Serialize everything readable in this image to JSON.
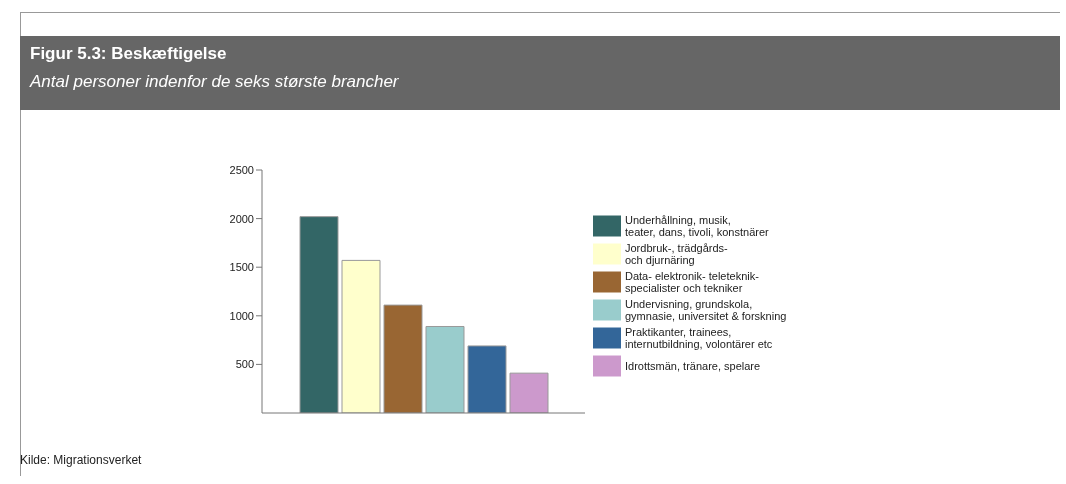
{
  "chart_data": {
    "type": "bar",
    "title": "Figur 5.3: Beskæftigelse",
    "subtitle": "Antal personer indenfor de seks største brancher",
    "categories": [
      null
    ],
    "series": [
      {
        "name": "Underhållning, musik,\nteater, dans, tivoli, konstnärer",
        "color": "#336666",
        "values": [
          2020
        ]
      },
      {
        "name": "Jordbruk-, trädgårds-\noch djurnäring",
        "color": "#ffffcc",
        "values": [
          1570
        ]
      },
      {
        "name": "Data- elektronik- teleteknik-\nspecialister och tekniker",
        "color": "#996633",
        "values": [
          1110
        ]
      },
      {
        "name": "Undervisning, grundskola,\ngymnasie, universitet & forskning",
        "color": "#99cccc",
        "values": [
          890
        ]
      },
      {
        "name": "Praktikanter, trainees,\ninternutbildning, volontärer etc",
        "color": "#336699",
        "values": [
          690
        ]
      },
      {
        "name": "Idrottsmän, tränare, spelare",
        "color": "#cc99cc",
        "values": [
          410
        ]
      }
    ],
    "ylim": [
      0,
      2500
    ],
    "yticks": [
      500,
      1000,
      1500,
      2000,
      2500
    ],
    "legend": "right",
    "tick_labels": "y",
    "annotations": [
      "Kilde: Migrationsverket"
    ]
  }
}
